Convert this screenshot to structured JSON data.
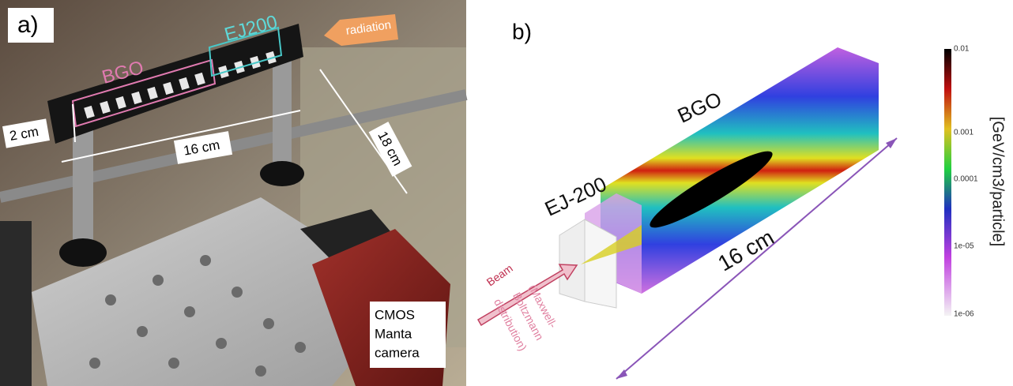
{
  "panel_a": {
    "label": "a)",
    "detector": {
      "scintillator_1": "EJ200",
      "scintillator_2": "BGO"
    },
    "radiation": "radiation",
    "dimensions": [
      "2 cm",
      "16 cm",
      "18 cm"
    ],
    "camera": [
      "CMOS",
      "Manta",
      "camera"
    ]
  },
  "panel_b": {
    "label": "b)",
    "materials": [
      "BGO",
      "EJ-200"
    ],
    "length": "16  cm",
    "beam": [
      "Beam",
      "(Maxwell-",
      "Boltzmann",
      "distribution)"
    ],
    "colorbar": {
      "label": "[GeV/cm3/particle]",
      "ticks": [
        "0.01",
        "0.001",
        "0.0001",
        "1e-05",
        "1e-06"
      ]
    }
  }
}
